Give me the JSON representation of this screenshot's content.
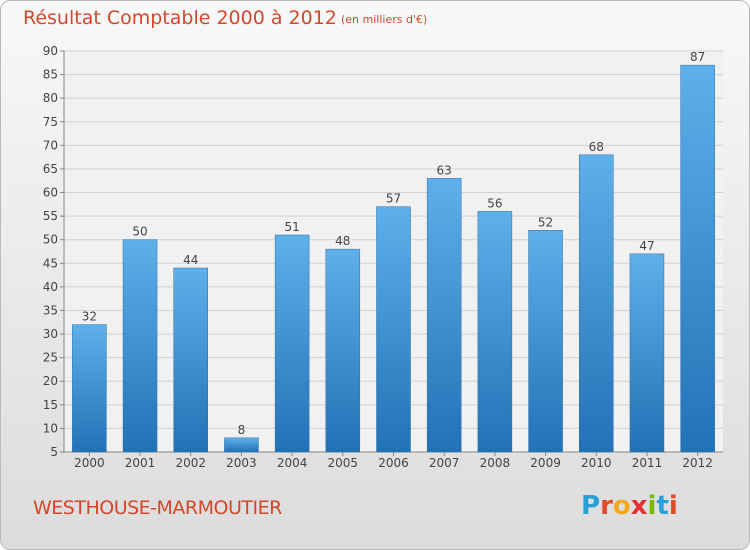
{
  "header": {
    "title": "Résultat Comptable 2000 à 2012",
    "subtitle": "(en milliers d'€)"
  },
  "footer": {
    "commune": "WESTHOUSE-MARMOUTIER",
    "logo": {
      "text": "Proxiti",
      "letters": [
        "P",
        "r",
        "o",
        "x",
        "i",
        "t",
        "i"
      ],
      "letter_colors": [
        "#2aa0d8",
        "#e04b2a",
        "#f3a81e",
        "#e23333",
        "#7ab800",
        "#2aa0d8",
        "#e04b2a"
      ]
    }
  },
  "chart_data": {
    "type": "bar",
    "categories": [
      "2000",
      "2001",
      "2002",
      "2003",
      "2004",
      "2005",
      "2006",
      "2007",
      "2008",
      "2009",
      "2010",
      "2011",
      "2012"
    ],
    "values": [
      32,
      50,
      44,
      8,
      51,
      48,
      57,
      63,
      56,
      52,
      68,
      47,
      87
    ],
    "data_labels": [
      "32",
      "50",
      "44",
      "8",
      "51",
      "48",
      "57",
      "63",
      "56",
      "52",
      "68",
      "47",
      "87"
    ],
    "yticks": [
      "5",
      "10",
      "15",
      "20",
      "25",
      "30",
      "35",
      "40",
      "45",
      "50",
      "55",
      "60",
      "65",
      "70",
      "75",
      "80",
      "85",
      "90"
    ],
    "ylim": [
      5,
      90
    ],
    "grid": true,
    "bar_color": "#3a8fd6"
  }
}
